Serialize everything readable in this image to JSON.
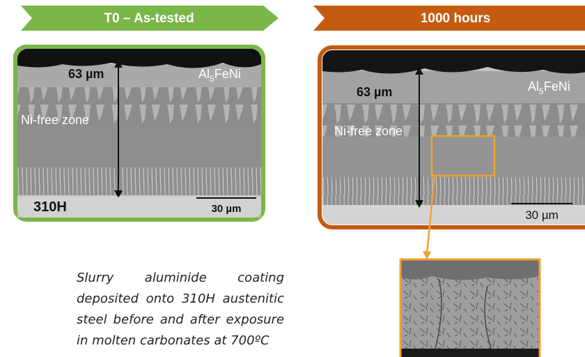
{
  "left": {
    "banner": "T0 – As-tested",
    "thickness": "63 µm",
    "phase": {
      "base": "Al",
      "sub": "5",
      "rest": "FeNi"
    },
    "zone": "Ni-free zone",
    "substrate": "310H",
    "scale": "30 µm"
  },
  "right": {
    "banner": "1000 hours",
    "thickness": "63 µm",
    "phase": {
      "base": "Al",
      "sub": "5",
      "rest": "FeNi"
    },
    "zone": "Ni-free zone",
    "scale": "30 µm"
  },
  "caption": "Slurry aluminide coating deposited onto 310H austenitic steel  before and after exposure in molten carbonates at 700ºC"
}
